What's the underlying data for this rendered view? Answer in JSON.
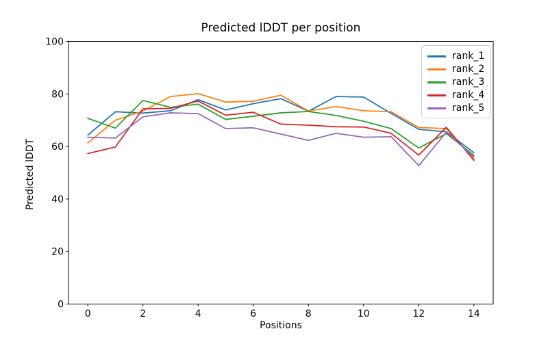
{
  "chart_data": {
    "type": "line",
    "title": "Predicted lDDT per position",
    "xlabel": "Positions",
    "ylabel": "Predicted lDDT",
    "xlim": [
      -0.7,
      14.7
    ],
    "ylim": [
      0,
      100
    ],
    "x_ticks": [
      0,
      2,
      4,
      6,
      8,
      10,
      12,
      14
    ],
    "y_ticks": [
      0,
      20,
      40,
      60,
      80,
      100
    ],
    "grid": false,
    "legend_position": "upper right",
    "x": [
      0,
      1,
      2,
      3,
      4,
      5,
      6,
      7,
      8,
      9,
      10,
      11,
      12,
      13,
      14
    ],
    "series": [
      {
        "name": "rank_1",
        "color": "#1f77b4",
        "values": [
          64.3,
          73.2,
          72.7,
          73.6,
          77.8,
          73.9,
          76.3,
          78.2,
          73.4,
          79.0,
          78.8,
          72.6,
          66.5,
          65.6,
          57.6
        ]
      },
      {
        "name": "rank_2",
        "color": "#ff7f0e",
        "values": [
          61.3,
          70.0,
          73.5,
          79.0,
          80.1,
          76.9,
          77.2,
          79.5,
          73.5,
          75.2,
          73.6,
          73.2,
          67.2,
          66.8,
          55.2
        ]
      },
      {
        "name": "rank_3",
        "color": "#2ca02c",
        "values": [
          70.7,
          67.0,
          77.5,
          74.9,
          76.1,
          70.3,
          71.5,
          72.8,
          73.3,
          71.8,
          69.6,
          66.8,
          59.4,
          64.9,
          56.6
        ]
      },
      {
        "name": "rank_4",
        "color": "#d62728",
        "values": [
          57.3,
          59.8,
          74.3,
          74.5,
          77.3,
          71.9,
          73.0,
          68.5,
          68.1,
          67.5,
          67.4,
          65.0,
          56.7,
          67.3,
          54.7
        ]
      },
      {
        "name": "rank_5",
        "color": "#9467bd",
        "values": [
          63.5,
          63.2,
          71.3,
          72.8,
          72.5,
          66.8,
          67.1,
          64.7,
          62.3,
          65.0,
          63.5,
          63.7,
          52.7,
          65.4,
          56.0
        ]
      }
    ]
  }
}
